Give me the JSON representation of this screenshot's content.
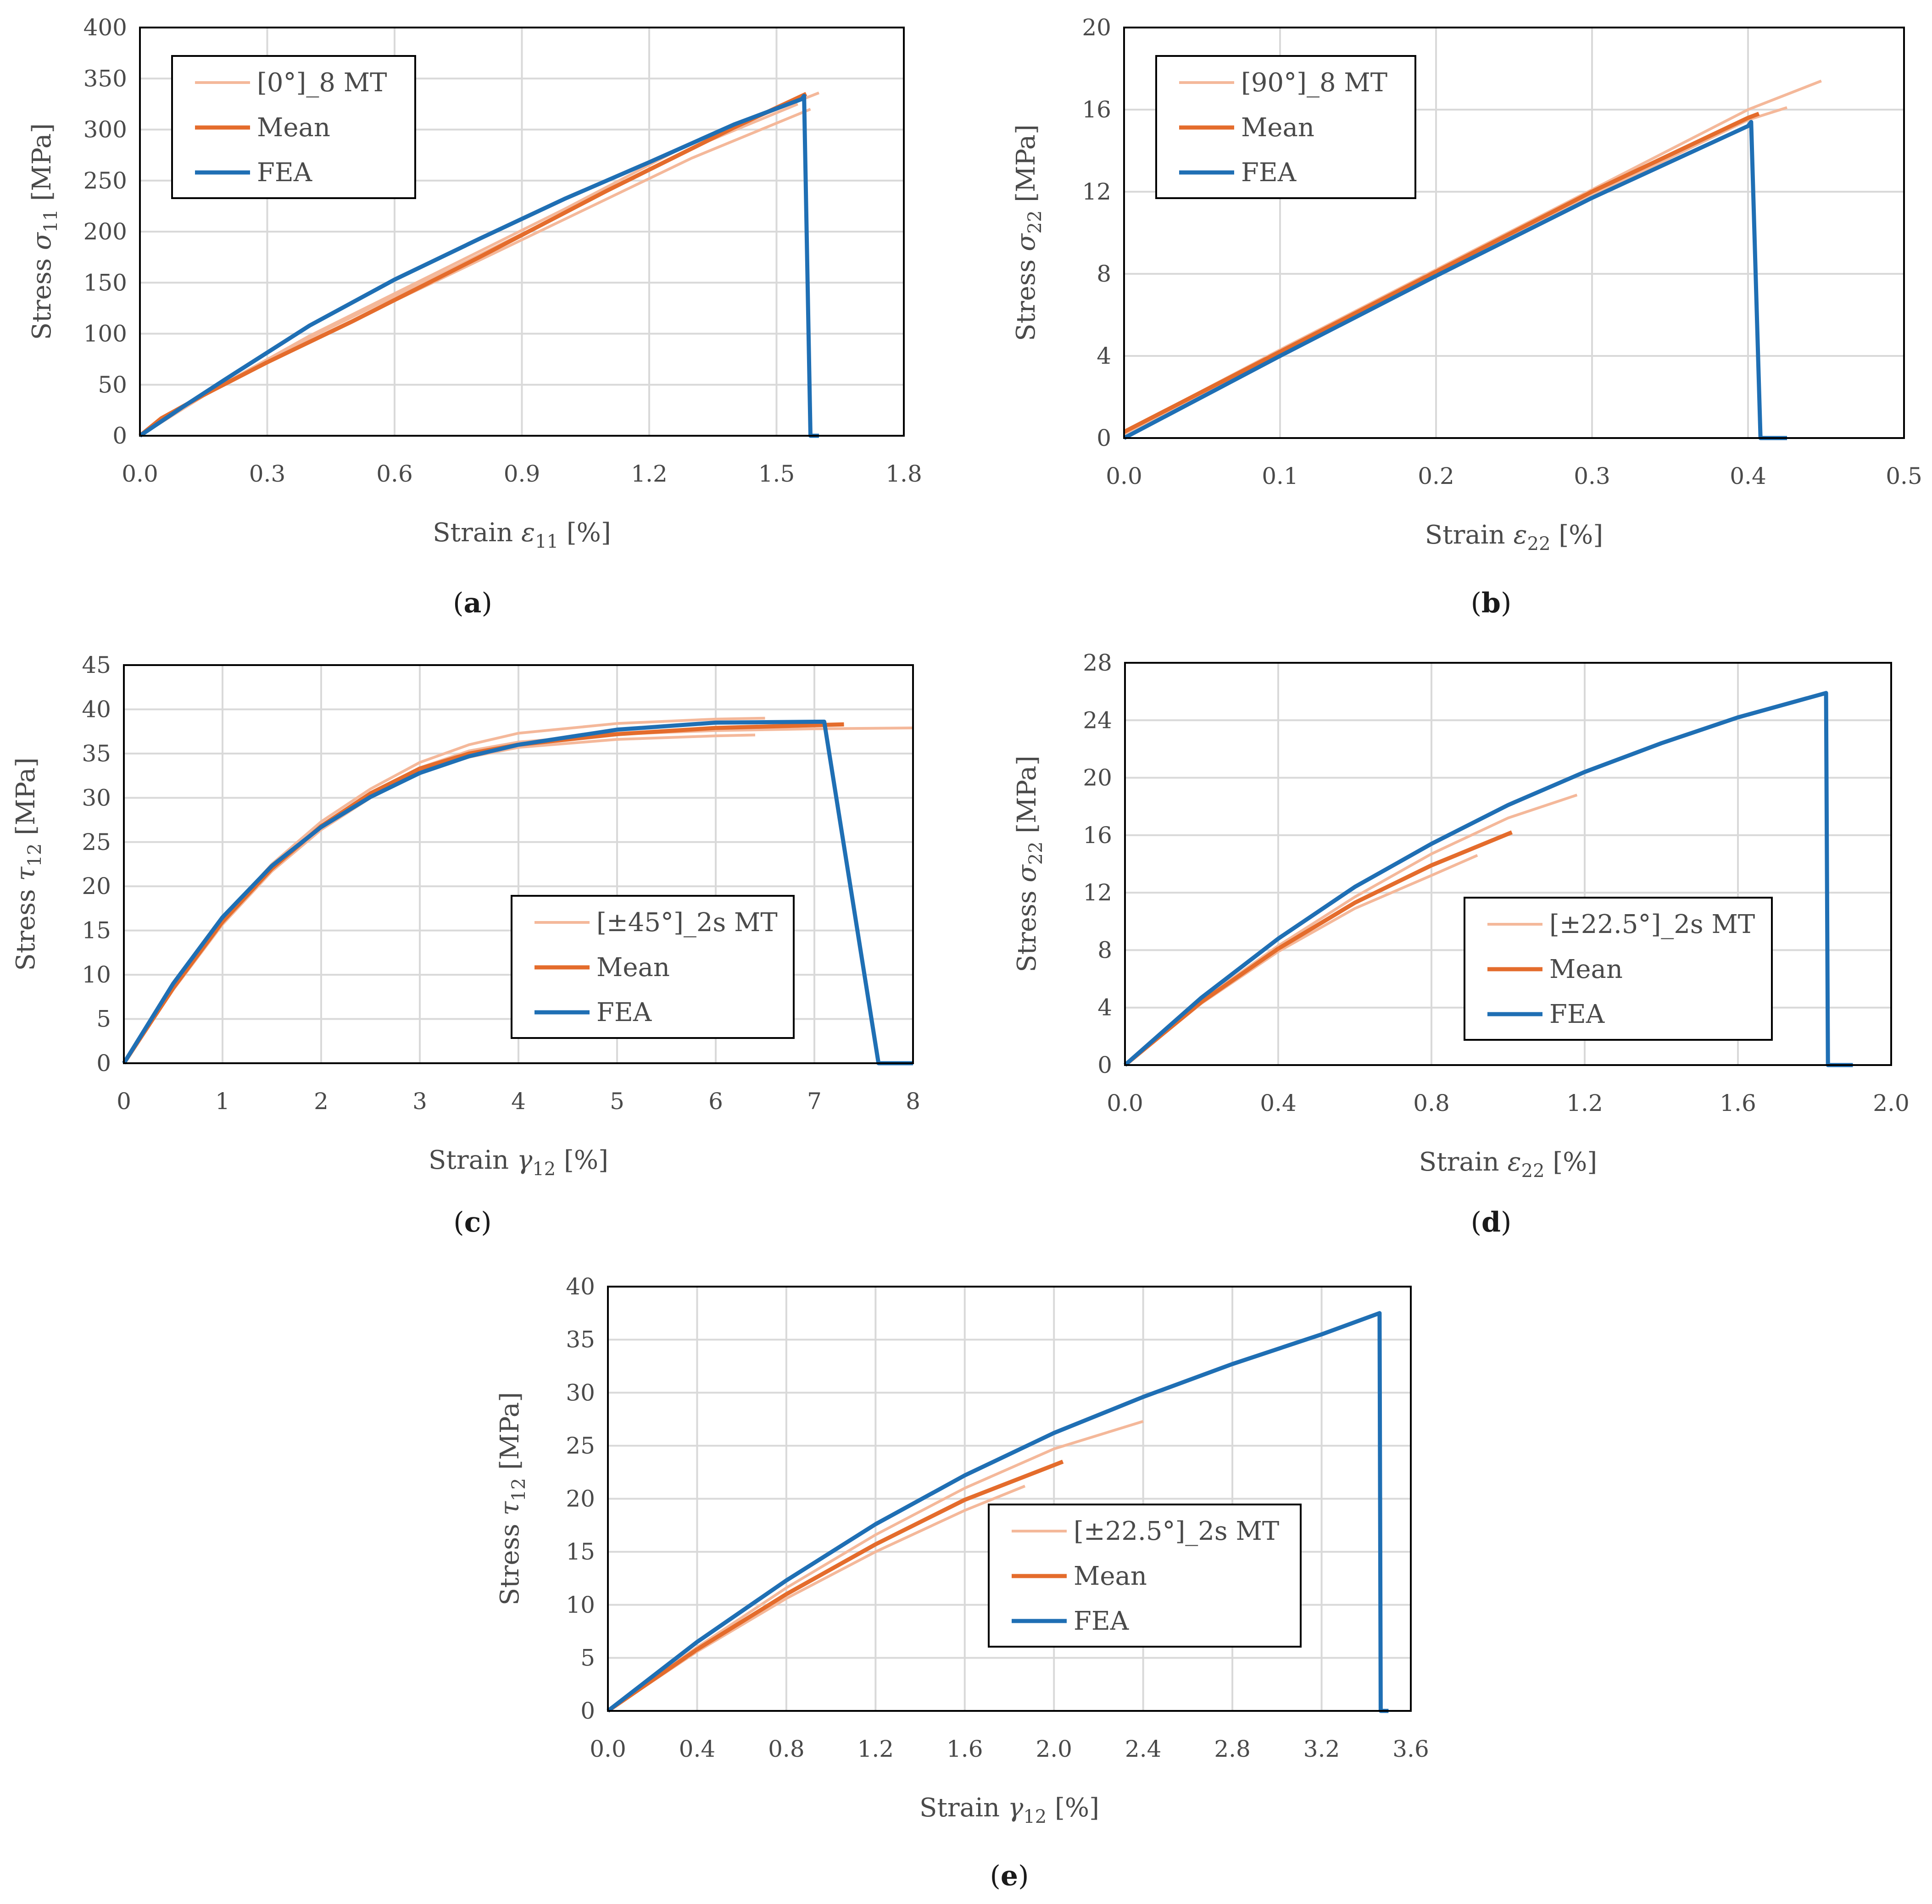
{
  "colors": {
    "mt": "#f4b89a",
    "mean": "#e46c2c",
    "fea": "#1f6fb4",
    "grid": "#d9d9d9",
    "frame": "#000000"
  },
  "chart_data": [
    {
      "id": "a",
      "type": "line",
      "caption_letter": "a",
      "ylabel": {
        "prefix": "Stress ",
        "symbol": "σ",
        "sub": "11",
        "suffix": " [MPa]"
      },
      "xlabel": {
        "prefix": "Strain ",
        "symbol": "ε",
        "sub": "11",
        "suffix": " [%]"
      },
      "xlim": [
        0,
        1.8
      ],
      "ylim": [
        0,
        400
      ],
      "xticks": [
        "0.0",
        "0.3",
        "0.6",
        "0.9",
        "1.2",
        "1.5",
        "1.8"
      ],
      "yticks": [
        "0",
        "50",
        "100",
        "150",
        "200",
        "250",
        "300",
        "350",
        "400"
      ],
      "legend": {
        "position": "top-left",
        "entries": [
          "[0°]_8 MT",
          "Mean",
          "FEA"
        ]
      },
      "series": [
        {
          "name": "[0°]_8 MT",
          "color": "mt",
          "points": [
            [
              0,
              0
            ],
            [
              0.15,
              40
            ],
            [
              0.4,
              98
            ],
            [
              0.7,
              160
            ],
            [
              1.0,
              222
            ],
            [
              1.3,
              287
            ],
            [
              1.6,
              336
            ]
          ]
        },
        {
          "name": "[0°]_8 MT",
          "color": "mt",
          "points": [
            [
              0,
              0
            ],
            [
              0.15,
              40
            ],
            [
              0.4,
              93
            ],
            [
              0.7,
              152
            ],
            [
              1.0,
              212
            ],
            [
              1.3,
              272
            ],
            [
              1.58,
              320
            ]
          ]
        },
        {
          "name": "[0°]_8 MT",
          "color": "mt",
          "points": [
            [
              0,
              0
            ],
            [
              0.15,
              39
            ],
            [
              0.4,
              96
            ],
            [
              0.7,
              157
            ],
            [
              1.0,
              218
            ],
            [
              1.3,
              282
            ],
            [
              1.55,
              325
            ]
          ]
        },
        {
          "name": "Mean",
          "color": "mean",
          "points": [
            [
              0,
              0
            ],
            [
              0.05,
              17
            ],
            [
              0.15,
              40
            ],
            [
              0.3,
              72
            ],
            [
              0.5,
              112
            ],
            [
              0.8,
              175
            ],
            [
              1.1,
              240
            ],
            [
              1.4,
              302
            ],
            [
              1.57,
              335
            ]
          ]
        },
        {
          "name": "FEA",
          "color": "fea",
          "points": [
            [
              0,
              0
            ],
            [
              0.1,
              28
            ],
            [
              0.2,
              55
            ],
            [
              0.4,
              108
            ],
            [
              0.6,
              153
            ],
            [
              0.8,
              193
            ],
            [
              1.0,
              232
            ],
            [
              1.2,
              268
            ],
            [
              1.4,
              305
            ],
            [
              1.56,
              330
            ],
            [
              1.565,
              333
            ],
            [
              1.58,
              0
            ],
            [
              1.6,
              0
            ]
          ]
        }
      ]
    },
    {
      "id": "b",
      "type": "line",
      "caption_letter": "b",
      "ylabel": {
        "prefix": "Stress ",
        "symbol": "σ",
        "sub": "22",
        "suffix": " [MPa]"
      },
      "xlabel": {
        "prefix": "Strain ",
        "symbol": "ε",
        "sub": "22",
        "suffix": " [%]"
      },
      "xlim": [
        0,
        0.5
      ],
      "ylim": [
        0,
        20
      ],
      "xticks": [
        "0.0",
        "0.1",
        "0.2",
        "0.3",
        "0.4",
        "0.5"
      ],
      "yticks": [
        "0",
        "4",
        "8",
        "12",
        "16",
        "20"
      ],
      "legend": {
        "position": "top-left",
        "entries": [
          "[90°]_8 MT",
          "Mean",
          "FEA"
        ]
      },
      "series": [
        {
          "name": "[90°]_8 MT",
          "color": "mt",
          "points": [
            [
              0,
              0.3
            ],
            [
              0.1,
              4.3
            ],
            [
              0.2,
              8.2
            ],
            [
              0.3,
              12.1
            ],
            [
              0.4,
              16.0
            ],
            [
              0.447,
              17.4
            ]
          ]
        },
        {
          "name": "[90°]_8 MT",
          "color": "mt",
          "points": [
            [
              0,
              0.2
            ],
            [
              0.1,
              4.1
            ],
            [
              0.2,
              8.0
            ],
            [
              0.3,
              11.8
            ],
            [
              0.4,
              15.5
            ],
            [
              0.425,
              16.1
            ]
          ]
        },
        {
          "name": "Mean",
          "color": "mean",
          "points": [
            [
              0,
              0.3
            ],
            [
              0.1,
              4.2
            ],
            [
              0.2,
              8.1
            ],
            [
              0.3,
              12.0
            ],
            [
              0.4,
              15.6
            ],
            [
              0.407,
              15.8
            ]
          ]
        },
        {
          "name": "FEA",
          "color": "fea",
          "points": [
            [
              0,
              0
            ],
            [
              0.1,
              4.0
            ],
            [
              0.2,
              7.9
            ],
            [
              0.3,
              11.7
            ],
            [
              0.4,
              15.2
            ],
            [
              0.402,
              15.4
            ],
            [
              0.408,
              0
            ],
            [
              0.425,
              0
            ]
          ]
        }
      ]
    },
    {
      "id": "c",
      "type": "line",
      "caption_letter": "c",
      "ylabel": {
        "prefix": "Stress ",
        "symbol": "τ",
        "sub": "12",
        "suffix": " [MPa]"
      },
      "xlabel": {
        "prefix": "Strain ",
        "symbol": "γ",
        "sub": "12",
        "suffix": " [%]"
      },
      "xlim": [
        0,
        8
      ],
      "ylim": [
        0,
        45
      ],
      "xticks": [
        "0",
        "1",
        "2",
        "3",
        "4",
        "5",
        "6",
        "7",
        "8"
      ],
      "yticks": [
        "0",
        "5",
        "10",
        "15",
        "20",
        "25",
        "30",
        "35",
        "40",
        "45"
      ],
      "legend": {
        "position": "bottom-right",
        "entries": [
          "[±45°]_2s MT",
          "Mean",
          "FEA"
        ]
      },
      "series": [
        {
          "name": "[±45°]_2s MT",
          "color": "mt",
          "points": [
            [
              0,
              0
            ],
            [
              0.5,
              8.5
            ],
            [
              1,
              16
            ],
            [
              1.5,
              22
            ],
            [
              2,
              26.8
            ],
            [
              2.5,
              30.5
            ],
            [
              3,
              33.4
            ],
            [
              3.5,
              35.3
            ],
            [
              4,
              36.3
            ],
            [
              5,
              37.2
            ],
            [
              6,
              37.6
            ],
            [
              7,
              37.8
            ],
            [
              8,
              37.9
            ]
          ]
        },
        {
          "name": "[±45°]_2s MT",
          "color": "mt",
          "points": [
            [
              0,
              0
            ],
            [
              0.5,
              8.7
            ],
            [
              1,
              16.3
            ],
            [
              1.5,
              22.5
            ],
            [
              2,
              27.3
            ],
            [
              2.5,
              31
            ],
            [
              3,
              34
            ],
            [
              3.5,
              36
            ],
            [
              4,
              37.3
            ],
            [
              5,
              38.4
            ],
            [
              6,
              38.9
            ],
            [
              6.5,
              39
            ]
          ]
        },
        {
          "name": "[±45°]_2s MT",
          "color": "mt",
          "points": [
            [
              0,
              0
            ],
            [
              0.5,
              8.3
            ],
            [
              1,
              15.7
            ],
            [
              1.5,
              21.7
            ],
            [
              2,
              26.4
            ],
            [
              2.5,
              30
            ],
            [
              3,
              32.8
            ],
            [
              3.5,
              34.6
            ],
            [
              4,
              35.7
            ],
            [
              5,
              36.6
            ],
            [
              6,
              37
            ],
            [
              6.4,
              37.1
            ]
          ]
        },
        {
          "name": "Mean",
          "color": "mean",
          "points": [
            [
              0,
              0
            ],
            [
              0.5,
              8.5
            ],
            [
              1,
              16
            ],
            [
              1.5,
              22
            ],
            [
              2,
              26.8
            ],
            [
              2.5,
              30.5
            ],
            [
              3,
              33.3
            ],
            [
              3.5,
              35
            ],
            [
              4,
              36
            ],
            [
              5,
              37.2
            ],
            [
              6,
              37.9
            ],
            [
              7.3,
              38.3
            ]
          ]
        },
        {
          "name": "FEA",
          "color": "fea",
          "points": [
            [
              0,
              0
            ],
            [
              0.5,
              9
            ],
            [
              1,
              16.5
            ],
            [
              1.5,
              22.3
            ],
            [
              2,
              26.7
            ],
            [
              2.5,
              30.1
            ],
            [
              3,
              32.8
            ],
            [
              3.5,
              34.7
            ],
            [
              4,
              36
            ],
            [
              5,
              37.7
            ],
            [
              6,
              38.5
            ],
            [
              7.1,
              38.6
            ],
            [
              7.65,
              0
            ],
            [
              8,
              0
            ]
          ]
        }
      ]
    },
    {
      "id": "d",
      "type": "line",
      "caption_letter": "d",
      "ylabel": {
        "prefix": "Stress ",
        "symbol": "σ",
        "sub": "22",
        "suffix": " [MPa]"
      },
      "xlabel": {
        "prefix": "Strain ",
        "symbol": "ε",
        "sub": "22",
        "suffix": " [%]"
      },
      "xlim": [
        0,
        2.0
      ],
      "ylim": [
        0,
        28
      ],
      "xticks": [
        "0.0",
        "0.4",
        "0.8",
        "1.2",
        "1.6",
        "2.0"
      ],
      "yticks": [
        "0",
        "4",
        "8",
        "12",
        "16",
        "20",
        "24",
        "28"
      ],
      "legend": {
        "position": "bottom-right",
        "entries": [
          "[±22.5°]_2s MT",
          "Mean",
          "FEA"
        ]
      },
      "series": [
        {
          "name": "[±22.5°]_2s MT",
          "color": "mt",
          "points": [
            [
              0,
              0
            ],
            [
              0.2,
              4.5
            ],
            [
              0.4,
              8.3
            ],
            [
              0.6,
              11.7
            ],
            [
              0.8,
              14.7
            ],
            [
              1.0,
              17.2
            ],
            [
              1.18,
              18.8
            ]
          ]
        },
        {
          "name": "[±22.5°]_2s MT",
          "color": "mt",
          "points": [
            [
              0,
              0
            ],
            [
              0.2,
              4.3
            ],
            [
              0.4,
              7.9
            ],
            [
              0.6,
              10.9
            ],
            [
              0.8,
              13.2
            ],
            [
              0.92,
              14.6
            ]
          ]
        },
        {
          "name": "Mean",
          "color": "mean",
          "points": [
            [
              0,
              0
            ],
            [
              0.2,
              4.4
            ],
            [
              0.4,
              8.1
            ],
            [
              0.6,
              11.3
            ],
            [
              0.8,
              13.9
            ],
            [
              1.01,
              16.2
            ]
          ]
        },
        {
          "name": "FEA",
          "color": "fea",
          "points": [
            [
              0,
              0
            ],
            [
              0.2,
              4.7
            ],
            [
              0.4,
              8.8
            ],
            [
              0.6,
              12.4
            ],
            [
              0.8,
              15.4
            ],
            [
              1.0,
              18.1
            ],
            [
              1.2,
              20.4
            ],
            [
              1.4,
              22.4
            ],
            [
              1.6,
              24.2
            ],
            [
              1.83,
              25.9
            ],
            [
              1.835,
              0
            ],
            [
              1.9,
              0
            ]
          ]
        }
      ]
    },
    {
      "id": "e",
      "type": "line",
      "caption_letter": "e",
      "ylabel": {
        "prefix": "Stress ",
        "symbol": "τ",
        "sub": "12",
        "suffix": " [MPa]"
      },
      "xlabel": {
        "prefix": "Strain ",
        "symbol": "γ",
        "sub": "12",
        "suffix": " [%]"
      },
      "xlim": [
        0,
        3.6
      ],
      "ylim": [
        0,
        40
      ],
      "xticks": [
        "0.0",
        "0.4",
        "0.8",
        "1.2",
        "1.6",
        "2.0",
        "2.4",
        "2.8",
        "3.2",
        "3.6"
      ],
      "yticks": [
        "0",
        "5",
        "10",
        "15",
        "20",
        "25",
        "30",
        "35",
        "40"
      ],
      "legend": {
        "position": "bottom-right",
        "entries": [
          "[±22.5°]_2s MT",
          "Mean",
          "FEA"
        ]
      },
      "series": [
        {
          "name": "[±22.5°]_2s MT",
          "color": "mt",
          "points": [
            [
              0,
              0
            ],
            [
              0.4,
              6
            ],
            [
              0.8,
              11.6
            ],
            [
              1.2,
              16.6
            ],
            [
              1.6,
              21
            ],
            [
              2.0,
              24.7
            ],
            [
              2.4,
              27.3
            ]
          ]
        },
        {
          "name": "[±22.5°]_2s MT",
          "color": "mt",
          "points": [
            [
              0,
              0
            ],
            [
              0.4,
              5.6
            ],
            [
              0.8,
              10.6
            ],
            [
              1.2,
              15
            ],
            [
              1.6,
              18.9
            ],
            [
              1.87,
              21.2
            ]
          ]
        },
        {
          "name": "Mean",
          "color": "mean",
          "points": [
            [
              0,
              0
            ],
            [
              0.4,
              5.8
            ],
            [
              0.8,
              11
            ],
            [
              1.2,
              15.7
            ],
            [
              1.6,
              19.9
            ],
            [
              2.04,
              23.5
            ]
          ]
        },
        {
          "name": "FEA",
          "color": "fea",
          "points": [
            [
              0,
              0
            ],
            [
              0.4,
              6.5
            ],
            [
              0.8,
              12.3
            ],
            [
              1.2,
              17.6
            ],
            [
              1.6,
              22.2
            ],
            [
              2.0,
              26.2
            ],
            [
              2.4,
              29.6
            ],
            [
              2.8,
              32.7
            ],
            [
              3.2,
              35.5
            ],
            [
              3.46,
              37.5
            ],
            [
              3.465,
              0
            ],
            [
              3.5,
              0
            ]
          ]
        }
      ]
    }
  ]
}
